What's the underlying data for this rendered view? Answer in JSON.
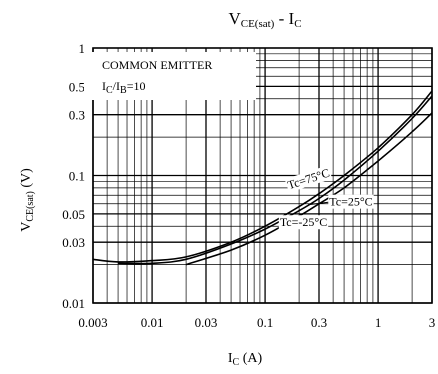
{
  "chart_data": {
    "type": "line",
    "title": {
      "main_a": "V",
      "main_a_sub": "CE(sat)",
      "separator": " - ",
      "main_b": "I",
      "main_b_sub": "C"
    },
    "xlabel": {
      "main": "I",
      "sub": "C",
      "unit": " (A)"
    },
    "ylabel": {
      "main": "V",
      "sub": "CE(sat)",
      "unit": " (V)"
    },
    "x_scale": "log",
    "y_scale": "log",
    "xlim": [
      0.003,
      3
    ],
    "ylim": [
      0.01,
      1
    ],
    "x_ticks": [
      0.003,
      0.01,
      0.03,
      0.1,
      0.3,
      1,
      3
    ],
    "x_tick_labels": [
      "0.003",
      "0.01",
      "0.03",
      "0.1",
      "0.3",
      "1",
      "3"
    ],
    "y_ticks": [
      0.01,
      0.03,
      0.05,
      0.1,
      0.3,
      0.5,
      1
    ],
    "y_tick_labels": [
      "0.01",
      "0.03",
      "0.05",
      "0.1",
      "0.3",
      "0.5",
      "1"
    ],
    "grid": true,
    "annotations": {
      "condition_1": "COMMON EMITTER",
      "condition_2_main": "I",
      "condition_2_sub1": "C",
      "condition_2_mid": "/I",
      "condition_2_sub2": "B",
      "condition_2_end": "=10"
    },
    "series": [
      {
        "name": "Tc=75°C",
        "x": [
          0.003,
          0.005,
          0.01,
          0.02,
          0.05,
          0.1,
          0.2,
          0.3,
          0.5,
          1,
          2,
          3
        ],
        "y": [
          0.022,
          0.021,
          0.0215,
          0.023,
          0.03,
          0.04,
          0.057,
          0.072,
          0.1,
          0.165,
          0.3,
          0.46
        ]
      },
      {
        "name": "Tc=25°C",
        "x": [
          0.005,
          0.01,
          0.02,
          0.05,
          0.1,
          0.2,
          0.3,
          0.5,
          1,
          2,
          3
        ],
        "y": [
          0.0205,
          0.0205,
          0.022,
          0.029,
          0.038,
          0.053,
          0.066,
          0.092,
          0.155,
          0.28,
          0.42
        ]
      },
      {
        "name": "Tc=-25°C",
        "x": [
          0.02,
          0.05,
          0.1,
          0.2,
          0.3,
          0.5,
          1,
          2,
          3
        ],
        "y": [
          0.02,
          0.026,
          0.034,
          0.048,
          0.06,
          0.08,
          0.13,
          0.22,
          0.31
        ]
      }
    ]
  }
}
